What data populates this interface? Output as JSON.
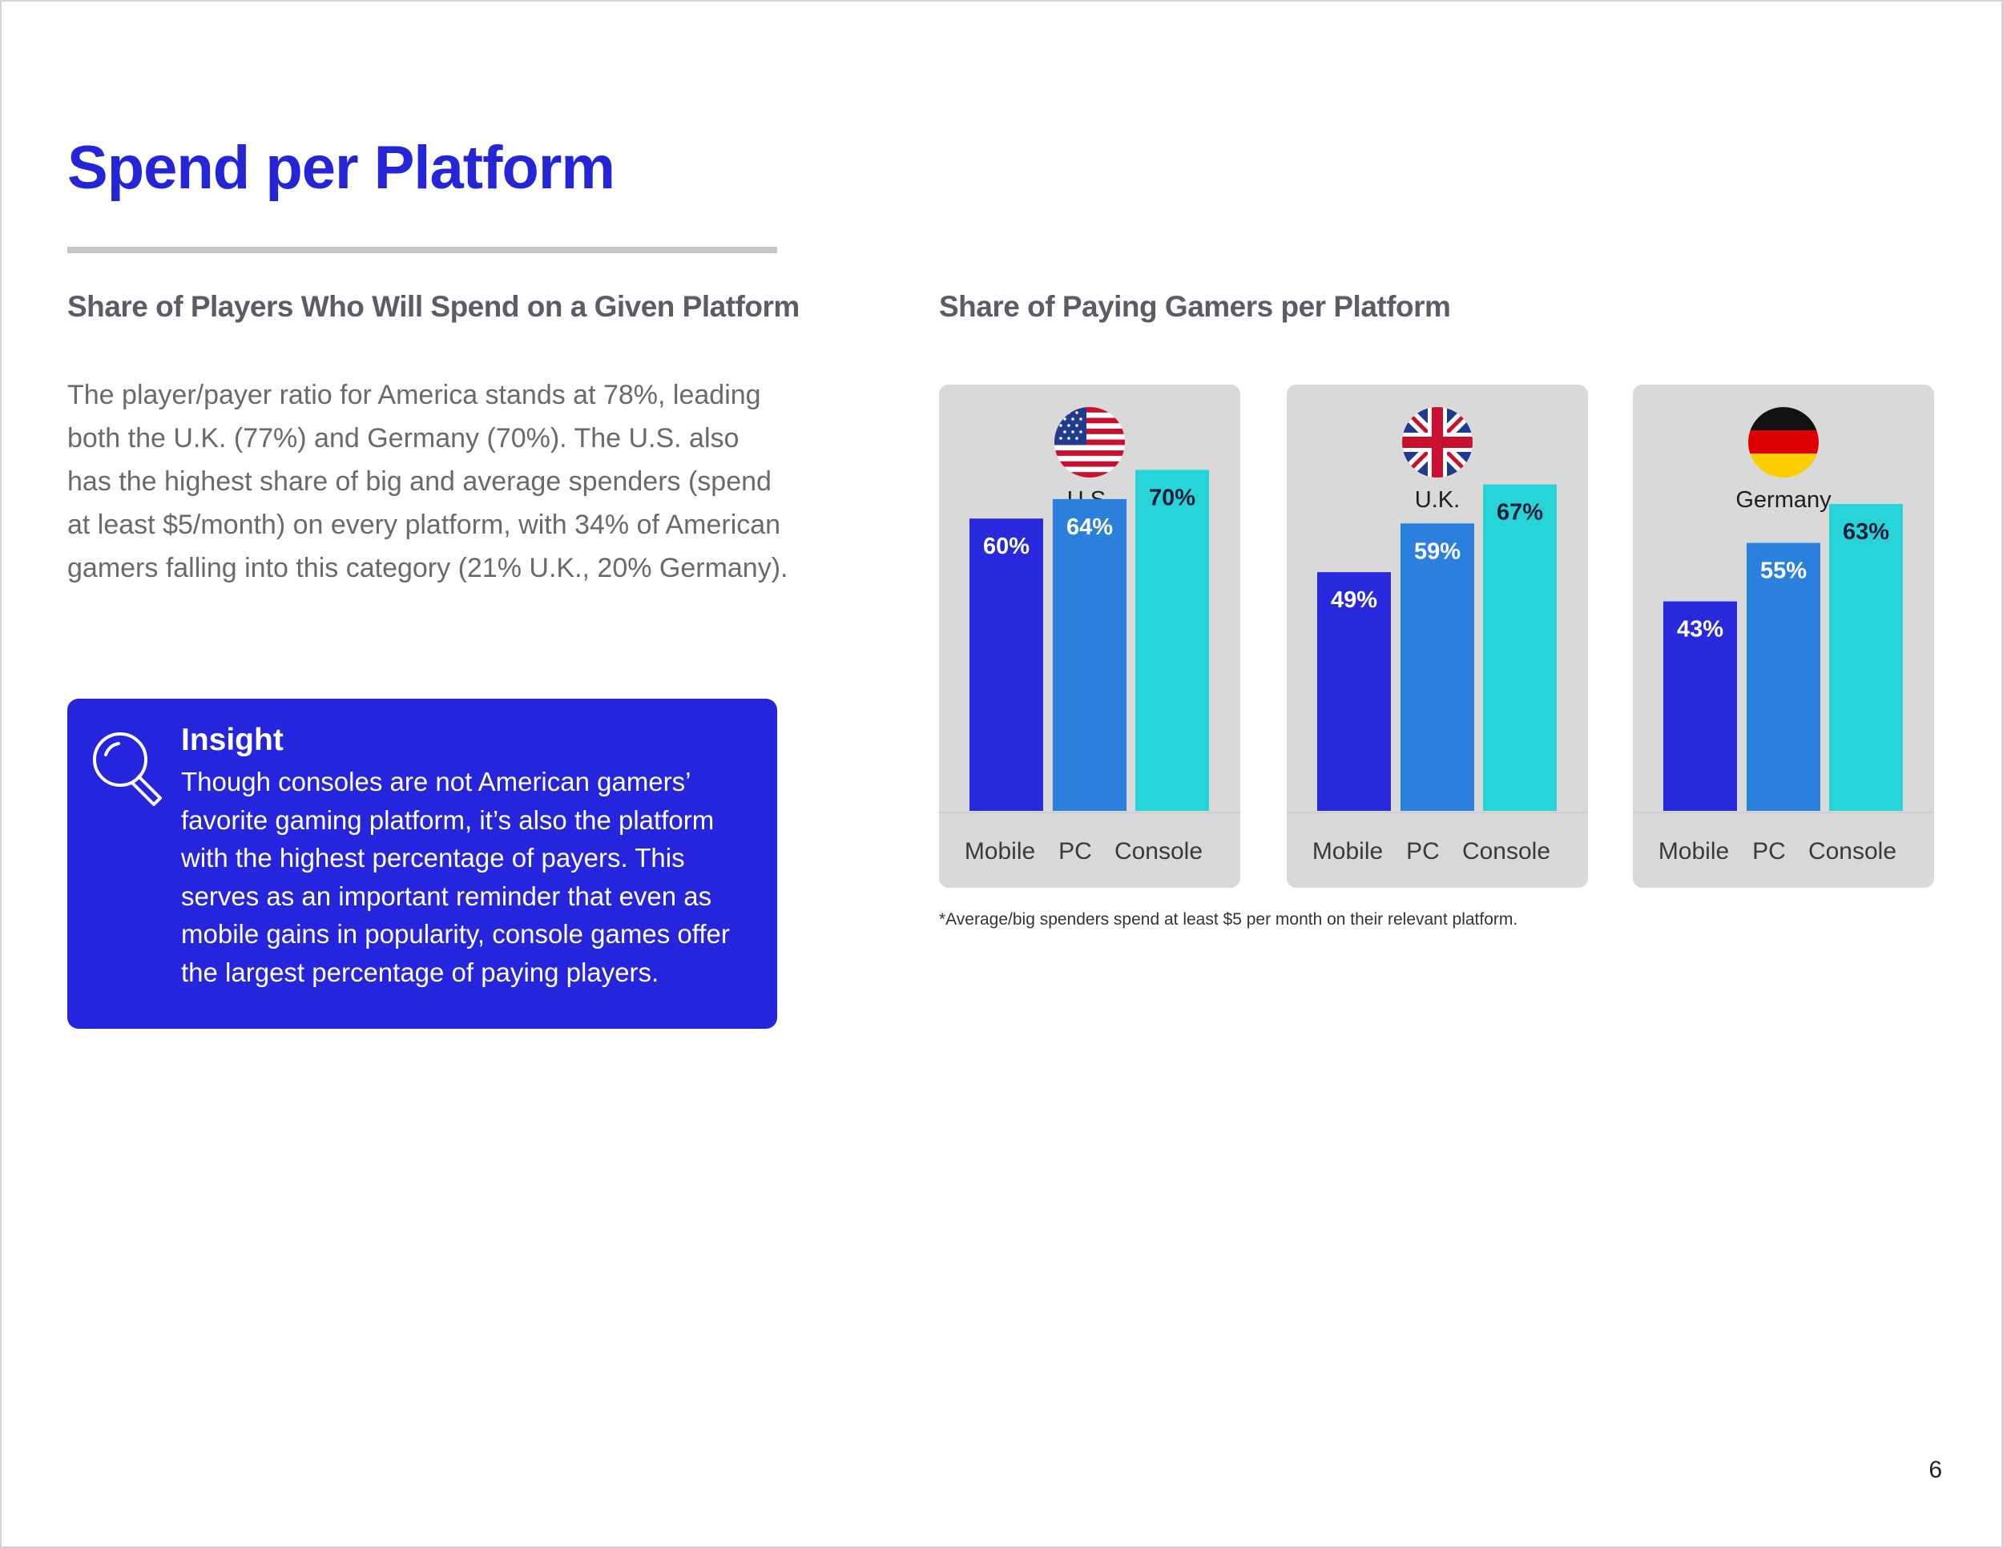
{
  "page": {
    "title": "Spend per Platform",
    "left_heading": "Share of Players Who Will Spend on a Given Platform",
    "right_heading": "Share of Paying Gamers per Platform",
    "body_text": "The player/payer ratio for America stands at 78%, leading both the U.K. (77%) and Germany (70%). The U.S. also has the highest share of big and average spenders (spend at least $5/month) on every platform, with 34% of American gamers falling into this category (21% U.K., 20% Germany).",
    "insight": {
      "title": "Insight",
      "text": "Though consoles are not American gamers’ favorite gaming platform, it’s also the platform with the highest percentage of payers. This serves as an important reminder that even as mobile gains in popularity, console games offer the largest percentage of paying players.",
      "icon": "magnifier-icon"
    },
    "footnote": "*Average/big spenders spend at least $5 per month on their relevant platform.",
    "page_number": "6"
  },
  "colors": {
    "title": "#2525d8",
    "mobile": "#2828dc",
    "pc": "#2a80dc",
    "console": "#27d4d8",
    "panel": "#d9d9d9",
    "insight_bg": "#2525dd"
  },
  "chart_data": [
    {
      "type": "bar",
      "title": "U.S.",
      "flag": "us-flag-icon",
      "categories": [
        "Mobile",
        "PC",
        "Console"
      ],
      "values": [
        60,
        64,
        70
      ],
      "value_labels": [
        "60%",
        "64%",
        "70%"
      ],
      "ylim": [
        0,
        100
      ],
      "grid": false
    },
    {
      "type": "bar",
      "title": "U.K.",
      "flag": "uk-flag-icon",
      "categories": [
        "Mobile",
        "PC",
        "Console"
      ],
      "values": [
        49,
        59,
        67
      ],
      "value_labels": [
        "49%",
        "59%",
        "67%"
      ],
      "ylim": [
        0,
        100
      ],
      "grid": false
    },
    {
      "type": "bar",
      "title": "Germany",
      "flag": "germany-flag-icon",
      "categories": [
        "Mobile",
        "PC",
        "Console"
      ],
      "values": [
        43,
        55,
        63
      ],
      "value_labels": [
        "43%",
        "55%",
        "63%"
      ],
      "ylim": [
        0,
        100
      ],
      "grid": false
    }
  ]
}
